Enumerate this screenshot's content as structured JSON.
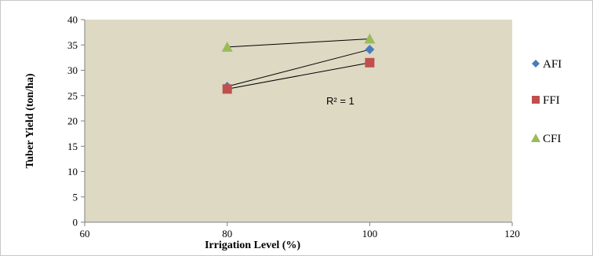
{
  "chart_data": {
    "type": "scatter",
    "xlabel": "Irrigation  Level (%)",
    "ylabel": "Tuber Yield  (ton/ha)",
    "xlim": [
      60,
      120
    ],
    "ylim": [
      0,
      40
    ],
    "x_ticks": [
      "60",
      "80",
      "100",
      "120"
    ],
    "y_ticks": [
      "0",
      "5",
      "10",
      "15",
      "20",
      "25",
      "30",
      "35",
      "40"
    ],
    "grid": false,
    "legend_position": "right",
    "annotation": "R² = 1",
    "plot_background": "#ddd9c3",
    "series": [
      {
        "name": "AFI",
        "marker": "diamond",
        "color": "#4a7bbf",
        "x": [
          80,
          100
        ],
        "y": [
          26.8,
          34.1
        ],
        "trendline": true
      },
      {
        "name": "FFI",
        "marker": "square",
        "color": "#c0504d",
        "x": [
          80,
          100
        ],
        "y": [
          26.3,
          31.5
        ],
        "trendline": true
      },
      {
        "name": "CFI",
        "marker": "triangle",
        "color": "#9bbb59",
        "x": [
          80,
          100
        ],
        "y": [
          34.6,
          36.2
        ],
        "trendline": true
      }
    ]
  }
}
